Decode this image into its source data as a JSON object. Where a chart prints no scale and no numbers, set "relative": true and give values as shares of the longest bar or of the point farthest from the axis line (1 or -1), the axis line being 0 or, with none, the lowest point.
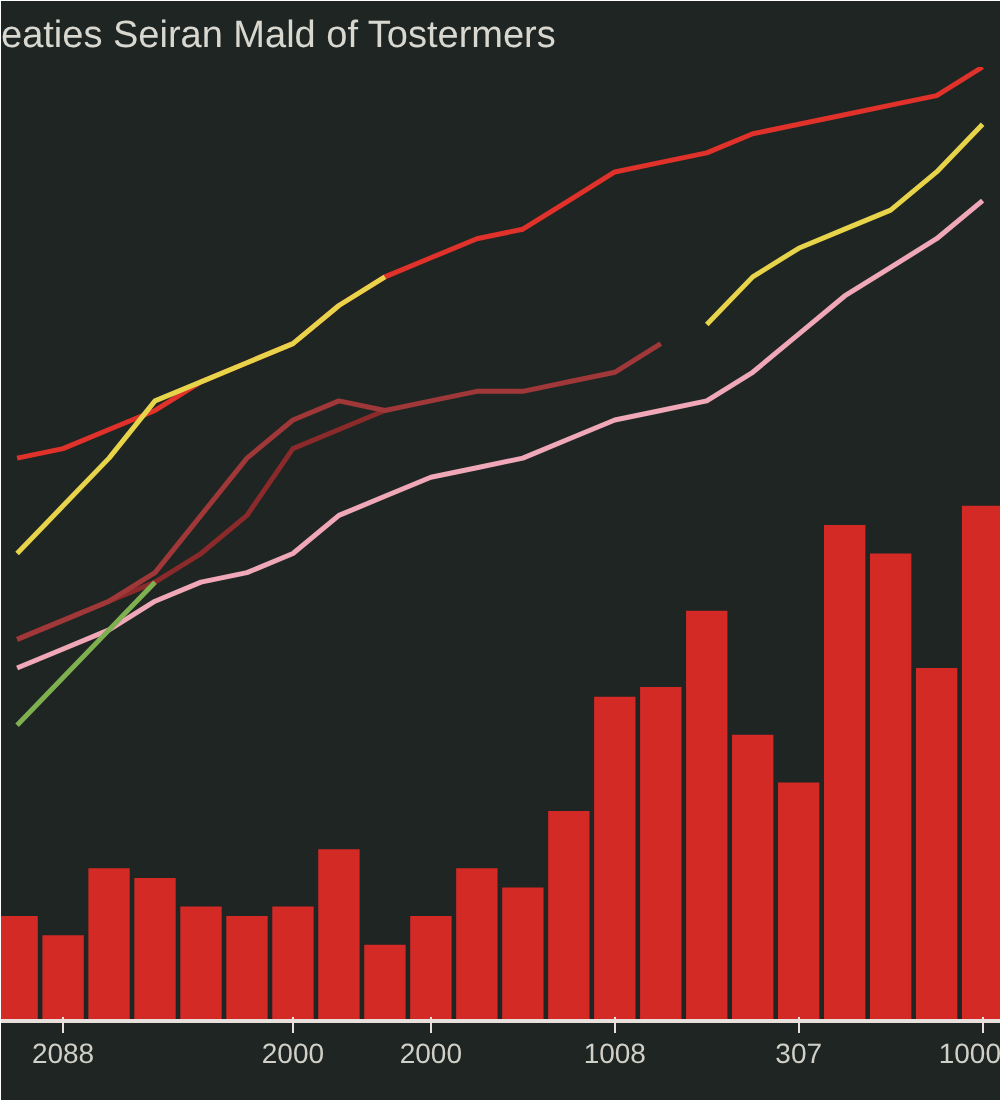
{
  "chart_data": {
    "type": "bar",
    "title": "eaties Seiran Mald of Tostermers",
    "relative": true,
    "categories": [
      null,
      "2088",
      null,
      null,
      null,
      null,
      "2000",
      null,
      null,
      "2000",
      null,
      null,
      null,
      "1008",
      null,
      null,
      null,
      "307",
      null,
      null,
      null,
      "1000"
    ],
    "series": [
      {
        "color": "#d42a26",
        "values": [
          0.11,
          0.09,
          0.16,
          0.15,
          0.12,
          0.11,
          0.12,
          0.18,
          0.08,
          0.11,
          0.16,
          0.14,
          0.22,
          0.34,
          0.35,
          0.43,
          0.3,
          0.25,
          0.52,
          0.49,
          0.37,
          0.54
        ]
      },
      {
        "type": "line",
        "color": "#e0322a",
        "values": [
          0.59,
          0.6,
          0.62,
          0.64,
          0.67,
          0.69,
          0.71,
          0.75,
          0.78,
          0.8,
          0.82,
          0.83,
          0.86,
          0.89,
          0.9,
          0.91,
          0.93,
          0.94,
          0.95,
          0.96,
          0.97,
          1.0
        ]
      },
      {
        "type": "line",
        "color": "#e8d44a",
        "values": [
          0.49,
          0.54,
          0.59,
          0.65,
          0.67,
          0.69,
          0.71,
          0.75,
          0.78,
          null,
          null,
          null,
          null,
          null,
          null,
          0.73,
          0.78,
          0.81,
          0.83,
          0.85,
          0.89,
          0.94
        ]
      },
      {
        "type": "line",
        "color": "#f0a8b8",
        "values": [
          0.37,
          0.39,
          0.41,
          0.44,
          0.46,
          0.47,
          0.49,
          0.53,
          0.55,
          0.57,
          0.58,
          0.59,
          0.61,
          0.63,
          0.64,
          0.65,
          0.68,
          0.72,
          0.76,
          0.79,
          0.82,
          0.86
        ]
      },
      {
        "type": "line",
        "color": "#8b2a2a",
        "values": [
          0.4,
          0.42,
          0.44,
          0.46,
          0.49,
          0.53,
          0.6,
          0.62,
          0.64,
          null,
          null,
          null,
          null,
          null,
          null,
          null,
          null,
          null,
          null,
          null,
          null,
          null
        ]
      },
      {
        "type": "line",
        "color": "#a0383a",
        "values": [
          0.4,
          0.42,
          0.44,
          0.47,
          0.53,
          0.59,
          0.63,
          0.65,
          0.64,
          0.65,
          0.66,
          0.66,
          0.67,
          0.68,
          0.71,
          null,
          null,
          null,
          null,
          null,
          null,
          null
        ]
      },
      {
        "type": "line",
        "color": "#7fb050",
        "values": [
          0.31,
          0.36,
          0.41,
          0.46,
          null,
          null,
          null,
          null,
          null,
          null,
          null,
          null,
          null,
          null,
          null,
          null,
          null,
          null,
          null,
          null,
          null,
          null
        ]
      }
    ]
  }
}
